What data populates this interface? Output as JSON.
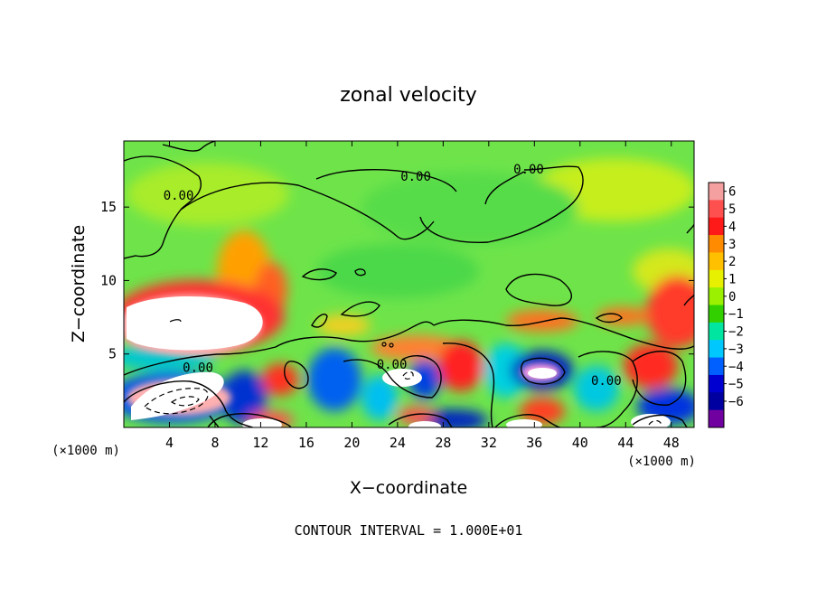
{
  "chart_data": {
    "type": "heatmap",
    "title": "zonal velocity",
    "xlabel": "X−coordinate",
    "ylabel": "Z−coordinate",
    "x_unit_left": "(×1000 m)",
    "x_unit_right": "(×1000 m)",
    "xlim": [
      0,
      50
    ],
    "ylim": [
      0,
      19.5
    ],
    "xticks": [
      4,
      8,
      12,
      16,
      20,
      24,
      28,
      32,
      36,
      40,
      44,
      48
    ],
    "yticks": [
      5,
      10,
      15
    ],
    "xtick_labels": [
      "4",
      "8",
      "12",
      "16",
      "20",
      "24",
      "28",
      "32",
      "36",
      "40",
      "44",
      "48"
    ],
    "ytick_labels": [
      "5",
      "10",
      "15"
    ],
    "colorbar": {
      "levels": [
        6,
        5,
        4,
        3,
        2,
        1,
        0,
        -1,
        -2,
        -3,
        -4,
        -5,
        -6
      ],
      "labels": [
        "6",
        "5",
        "4",
        "3",
        "2",
        "1",
        "0",
        "−1",
        "−2",
        "−3",
        "−4",
        "−5",
        "−6"
      ],
      "colors": [
        "#f4a0a0",
        "#ff5050",
        "#ff1a1a",
        "#ff8c00",
        "#ffc000",
        "#e6f000",
        "#9af000",
        "#33d000",
        "#00e6a0",
        "#00c8ff",
        "#0060ff",
        "#0000d0",
        "#0000a0",
        "#7000a0"
      ]
    },
    "contour_labels": [
      {
        "text": "0.00",
        "x": 4.8,
        "y": 15.8
      },
      {
        "text": "0.00",
        "x": 25.6,
        "y": 17.1
      },
      {
        "text": "0.00",
        "x": 35.5,
        "y": 17.6
      },
      {
        "text": "0.00",
        "x": 6.5,
        "y": 4.1
      },
      {
        "text": "0.00",
        "x": 23.5,
        "y": 4.3
      },
      {
        "text": "0.00",
        "x": 42.3,
        "y": 3.2
      }
    ],
    "footer": "CONTOUR INTERVAL = 1.000E+01"
  }
}
